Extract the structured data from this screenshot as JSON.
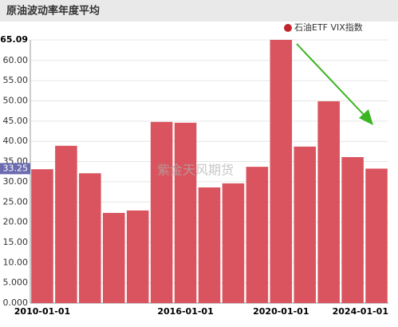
{
  "chart_data": {
    "type": "bar",
    "title": "原油波动率年度平均",
    "watermark": "紫金天风期货",
    "categories": [
      "2010-01-01",
      null,
      null,
      null,
      null,
      null,
      "2016-01-01",
      null,
      null,
      null,
      "2020-01-01",
      null,
      null,
      null,
      "2024-01-01"
    ],
    "series": [
      {
        "name": "石油ETF VIX指数",
        "color": "#d9545e",
        "values": [
          33.1,
          38.9,
          32.1,
          22.3,
          22.9,
          44.8,
          44.6,
          28.6,
          29.6,
          33.7,
          65.09,
          38.7,
          49.9,
          36.1,
          33.25
        ]
      }
    ],
    "ylim": [
      0,
      65.09
    ],
    "yticks": [
      {
        "value": 0,
        "label": "0.000"
      },
      {
        "value": 5,
        "label": "5.000"
      },
      {
        "value": 10,
        "label": "10.00"
      },
      {
        "value": 15,
        "label": "15.00"
      },
      {
        "value": 20,
        "label": "20.00"
      },
      {
        "value": 25,
        "label": "25.00"
      },
      {
        "value": 30,
        "label": "30.00"
      },
      {
        "value": 35,
        "label": "35.00"
      },
      {
        "value": 40,
        "label": "40.00"
      },
      {
        "value": 45,
        "label": "45.00"
      },
      {
        "value": 50,
        "label": "50.00"
      },
      {
        "value": 55,
        "label": "55.00"
      },
      {
        "value": 60,
        "label": "60.00"
      },
      65.09
    ],
    "grid": true
  }
}
